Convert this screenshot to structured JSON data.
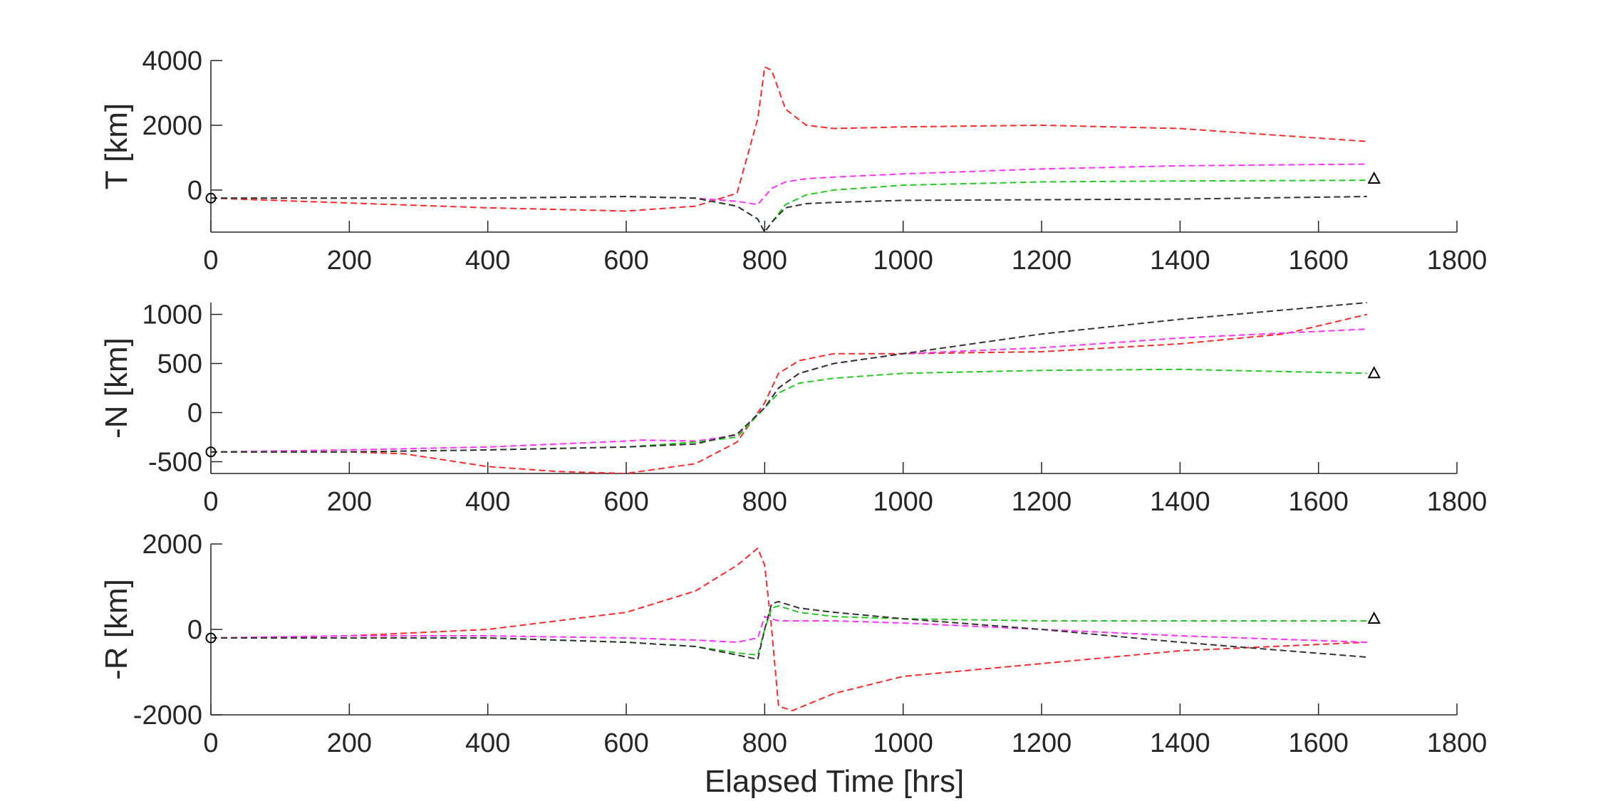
{
  "figure": {
    "xlabel": "Elapsed Time [hrs]"
  },
  "colors": {
    "red": "#ff2a2a",
    "magenta": "#ff33ff",
    "green": "#22cc22",
    "black": "#333333",
    "axis": "#262626"
  },
  "chart_data": [
    {
      "type": "line",
      "ylabel": "T [km]",
      "xlim": [
        0,
        1800
      ],
      "ylim": [
        -1300,
        4000
      ],
      "xticks": [
        0,
        200,
        400,
        600,
        800,
        1000,
        1200,
        1400,
        1600,
        1800
      ],
      "yticks": [
        0,
        2000,
        4000
      ],
      "grid": false,
      "series": [
        {
          "color": "red",
          "x": [
            0,
            200,
            400,
            600,
            700,
            760,
            790,
            800,
            810,
            830,
            860,
            900,
            1000,
            1200,
            1400,
            1670
          ],
          "y": [
            -250,
            -400,
            -550,
            -650,
            -500,
            -100,
            2200,
            3800,
            3700,
            2500,
            2000,
            1900,
            1950,
            2000,
            1900,
            1500
          ]
        },
        {
          "color": "magenta",
          "x": [
            0,
            200,
            400,
            600,
            700,
            760,
            790,
            800,
            810,
            830,
            860,
            900,
            1000,
            1200,
            1400,
            1670
          ],
          "y": [
            -250,
            -250,
            -250,
            -200,
            -250,
            -350,
            -450,
            -200,
            50,
            250,
            350,
            400,
            500,
            650,
            750,
            800
          ]
        },
        {
          "color": "green",
          "x": [
            0,
            200,
            400,
            600,
            700,
            760,
            790,
            800,
            810,
            830,
            860,
            900,
            1000,
            1200,
            1400,
            1670
          ],
          "y": [
            -250,
            -250,
            -250,
            -200,
            -250,
            -500,
            -900,
            -1300,
            -1000,
            -450,
            -150,
            0,
            150,
            250,
            280,
            300
          ]
        },
        {
          "color": "black",
          "x": [
            0,
            200,
            400,
            600,
            700,
            760,
            790,
            800,
            810,
            830,
            860,
            900,
            1000,
            1200,
            1400,
            1670
          ],
          "y": [
            -250,
            -250,
            -250,
            -200,
            -250,
            -500,
            -900,
            -1300,
            -1000,
            -550,
            -420,
            -380,
            -320,
            -300,
            -280,
            -200
          ]
        }
      ],
      "start_marker": {
        "x": 0,
        "y": -250
      },
      "end_marker": {
        "x": 1670,
        "y": 350
      }
    },
    {
      "type": "line",
      "ylabel": "-N [km]",
      "xlim": [
        0,
        1800
      ],
      "ylim": [
        -620,
        1120
      ],
      "xticks": [
        0,
        200,
        400,
        600,
        800,
        1000,
        1200,
        1400,
        1600,
        1800
      ],
      "yticks": [
        -500,
        0,
        500,
        1000
      ],
      "grid": false,
      "series": [
        {
          "color": "red",
          "x": [
            0,
            200,
            280,
            400,
            500,
            600,
            700,
            760,
            800,
            820,
            850,
            900,
            1000,
            1200,
            1400,
            1550,
            1670
          ],
          "y": [
            -400,
            -400,
            -420,
            -550,
            -600,
            -620,
            -520,
            -300,
            100,
            400,
            530,
            600,
            600,
            620,
            700,
            800,
            1000
          ]
        },
        {
          "color": "magenta",
          "x": [
            0,
            200,
            400,
            600,
            620,
            700,
            760,
            800,
            820,
            850,
            900,
            1000,
            1200,
            1400,
            1670
          ],
          "y": [
            -400,
            -380,
            -350,
            -290,
            -280,
            -290,
            -230,
            50,
            250,
            400,
            500,
            600,
            660,
            760,
            850
          ]
        },
        {
          "color": "green",
          "x": [
            0,
            200,
            400,
            600,
            700,
            760,
            800,
            820,
            850,
            900,
            1000,
            1200,
            1400,
            1670
          ],
          "y": [
            -400,
            -400,
            -380,
            -350,
            -300,
            -250,
            50,
            200,
            300,
            350,
            400,
            430,
            440,
            400
          ]
        },
        {
          "color": "black",
          "x": [
            0,
            200,
            400,
            600,
            700,
            760,
            800,
            820,
            850,
            900,
            1000,
            1200,
            1400,
            1670
          ],
          "y": [
            -400,
            -400,
            -380,
            -350,
            -320,
            -220,
            50,
            250,
            400,
            500,
            600,
            800,
            950,
            1120
          ]
        }
      ],
      "start_marker": {
        "x": 0,
        "y": -400
      },
      "end_marker": {
        "x": 1670,
        "y": 400
      }
    },
    {
      "type": "line",
      "ylabel": "-R [km]",
      "xlim": [
        0,
        1800
      ],
      "ylim": [
        -2000,
        2000
      ],
      "xticks": [
        0,
        200,
        400,
        600,
        800,
        1000,
        1200,
        1400,
        1600,
        1800
      ],
      "yticks": [
        -2000,
        0,
        2000
      ],
      "grid": false,
      "series": [
        {
          "color": "red",
          "x": [
            0,
            200,
            400,
            600,
            700,
            760,
            790,
            800,
            810,
            820,
            840,
            900,
            1000,
            1200,
            1400,
            1670
          ],
          "y": [
            -200,
            -150,
            0,
            400,
            900,
            1500,
            1900,
            1500,
            0,
            -1800,
            -1900,
            -1500,
            -1100,
            -800,
            -500,
            -300
          ]
        },
        {
          "color": "magenta",
          "x": [
            0,
            200,
            400,
            600,
            700,
            760,
            790,
            800,
            810,
            820,
            850,
            900,
            1000,
            1200,
            1400,
            1670
          ],
          "y": [
            -200,
            -150,
            -150,
            -200,
            -250,
            -300,
            -200,
            300,
            250,
            200,
            200,
            200,
            150,
            0,
            -150,
            -300
          ]
        },
        {
          "color": "green",
          "x": [
            0,
            200,
            400,
            600,
            700,
            760,
            790,
            800,
            810,
            820,
            850,
            900,
            1000,
            1200,
            1400,
            1670
          ],
          "y": [
            -200,
            -200,
            -200,
            -300,
            -400,
            -550,
            -600,
            0,
            500,
            550,
            400,
            300,
            250,
            200,
            200,
            200
          ]
        },
        {
          "color": "black",
          "x": [
            0,
            200,
            400,
            600,
            700,
            760,
            790,
            800,
            810,
            820,
            850,
            900,
            1000,
            1200,
            1400,
            1670
          ],
          "y": [
            -200,
            -200,
            -200,
            -300,
            -400,
            -600,
            -700,
            0,
            600,
            650,
            500,
            400,
            250,
            0,
            -300,
            -650
          ]
        }
      ],
      "start_marker": {
        "x": 0,
        "y": -200
      },
      "end_marker": {
        "x": 1670,
        "y": 250
      }
    }
  ]
}
